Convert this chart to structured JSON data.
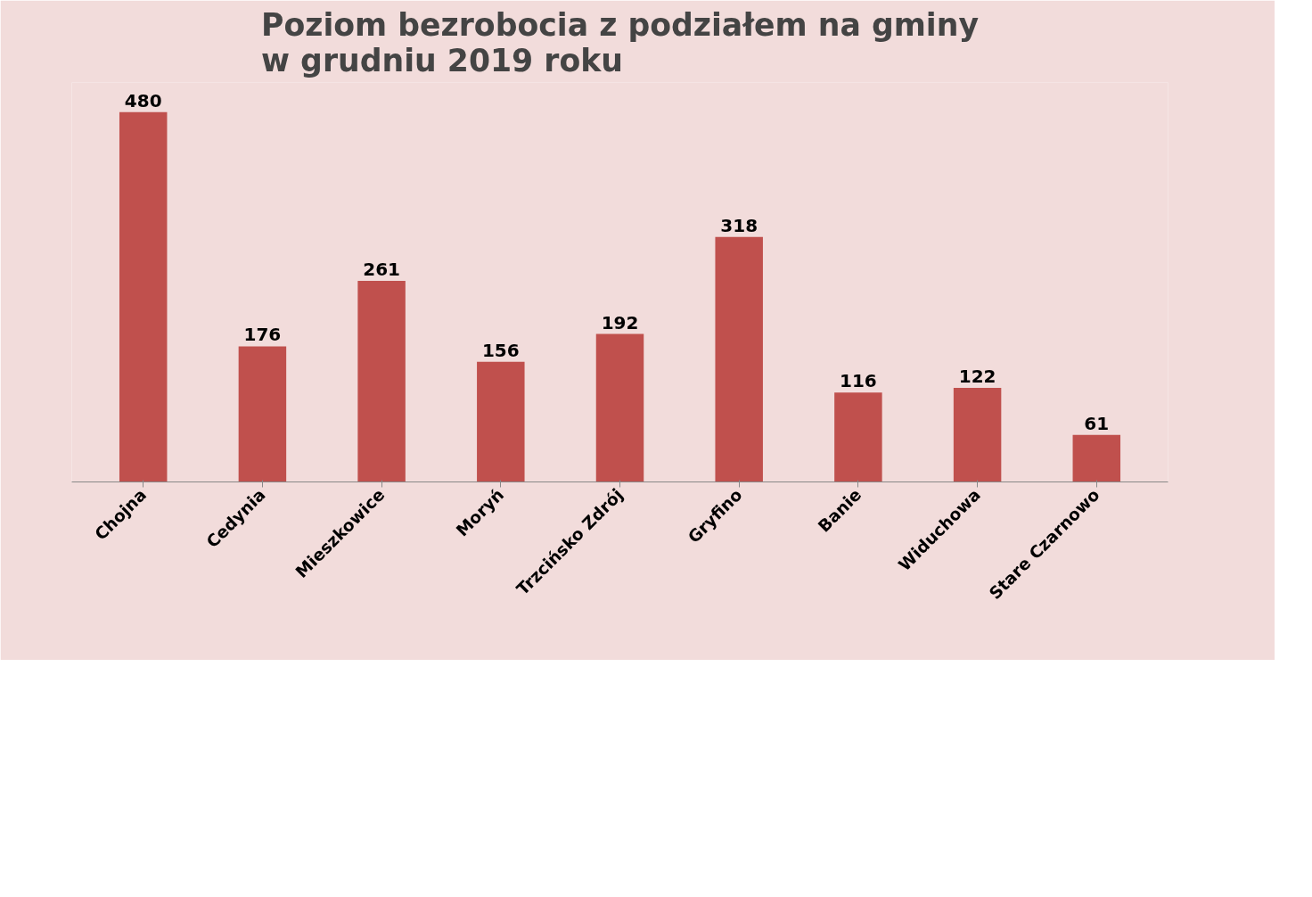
{
  "chart_data": {
    "type": "bar",
    "title": "Poziom bezrobocia z podziałem na gminy\nw grudniu 2019 roku",
    "categories": [
      "Chojna",
      "Cedynia",
      "Mieszkowice",
      "Moryń",
      "Trzcińsko Zdrój",
      "Gryfino",
      "Banie",
      "Widuchowa",
      "Stare Czarnowo"
    ],
    "values": [
      480,
      176,
      261,
      156,
      192,
      318,
      116,
      122,
      61
    ],
    "color": "#c0504d",
    "data_labels": true,
    "tick_labels": "x",
    "grid": false
  }
}
